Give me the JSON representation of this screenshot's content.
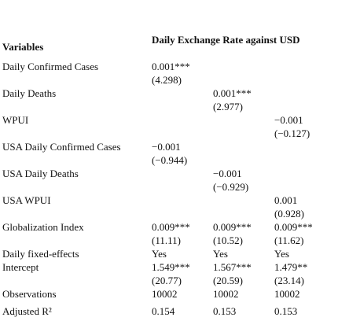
{
  "table": {
    "header": {
      "variable": "Variables",
      "dependent": "Daily Exchange Rate against USD"
    },
    "rows": [
      {
        "label": "Daily Confirmed Cases",
        "cells": [
          [
            "0.001***",
            "(4.298)"
          ],
          null,
          null
        ]
      },
      {
        "label": "Daily Deaths",
        "cells": [
          null,
          [
            "0.001***",
            "(2.977)"
          ],
          null
        ]
      },
      {
        "label": "WPUI",
        "cells": [
          null,
          null,
          [
            "−0.001",
            "(−0.127)"
          ]
        ]
      },
      {
        "label": "USA Daily Confirmed Cases",
        "cells": [
          [
            "−0.001",
            "(−0.944)"
          ],
          null,
          null
        ]
      },
      {
        "label": "USA Daily Deaths",
        "cells": [
          null,
          [
            "−0.001",
            "(−0.929)"
          ],
          null
        ]
      },
      {
        "label": "USA WPUI",
        "cells": [
          null,
          null,
          [
            "0.001",
            "(0.928)"
          ]
        ]
      },
      {
        "label": "Globalization Index",
        "cells": [
          [
            "0.009***",
            "(11.11)"
          ],
          [
            "0.009***",
            "(10.52)"
          ],
          [
            "0.009***",
            "(11.62)"
          ]
        ]
      },
      {
        "label": "Daily fixed-effects",
        "cells": [
          [
            "Yes"
          ],
          [
            "Yes"
          ],
          [
            "Yes"
          ]
        ]
      },
      {
        "label": "Intercept",
        "cells": [
          [
            "1.549***",
            "(20.77)"
          ],
          [
            "1.567***",
            "(20.59)"
          ],
          [
            "1.479**",
            "(23.14)"
          ]
        ]
      },
      {
        "label": "Observations",
        "cells": [
          [
            "10002"
          ],
          [
            "10002"
          ],
          [
            "10002"
          ]
        ]
      },
      {
        "label": "Adjusted R²",
        "cells": [
          [
            "0.154"
          ],
          [
            "0.153"
          ],
          [
            "0.153"
          ]
        ]
      }
    ]
  }
}
